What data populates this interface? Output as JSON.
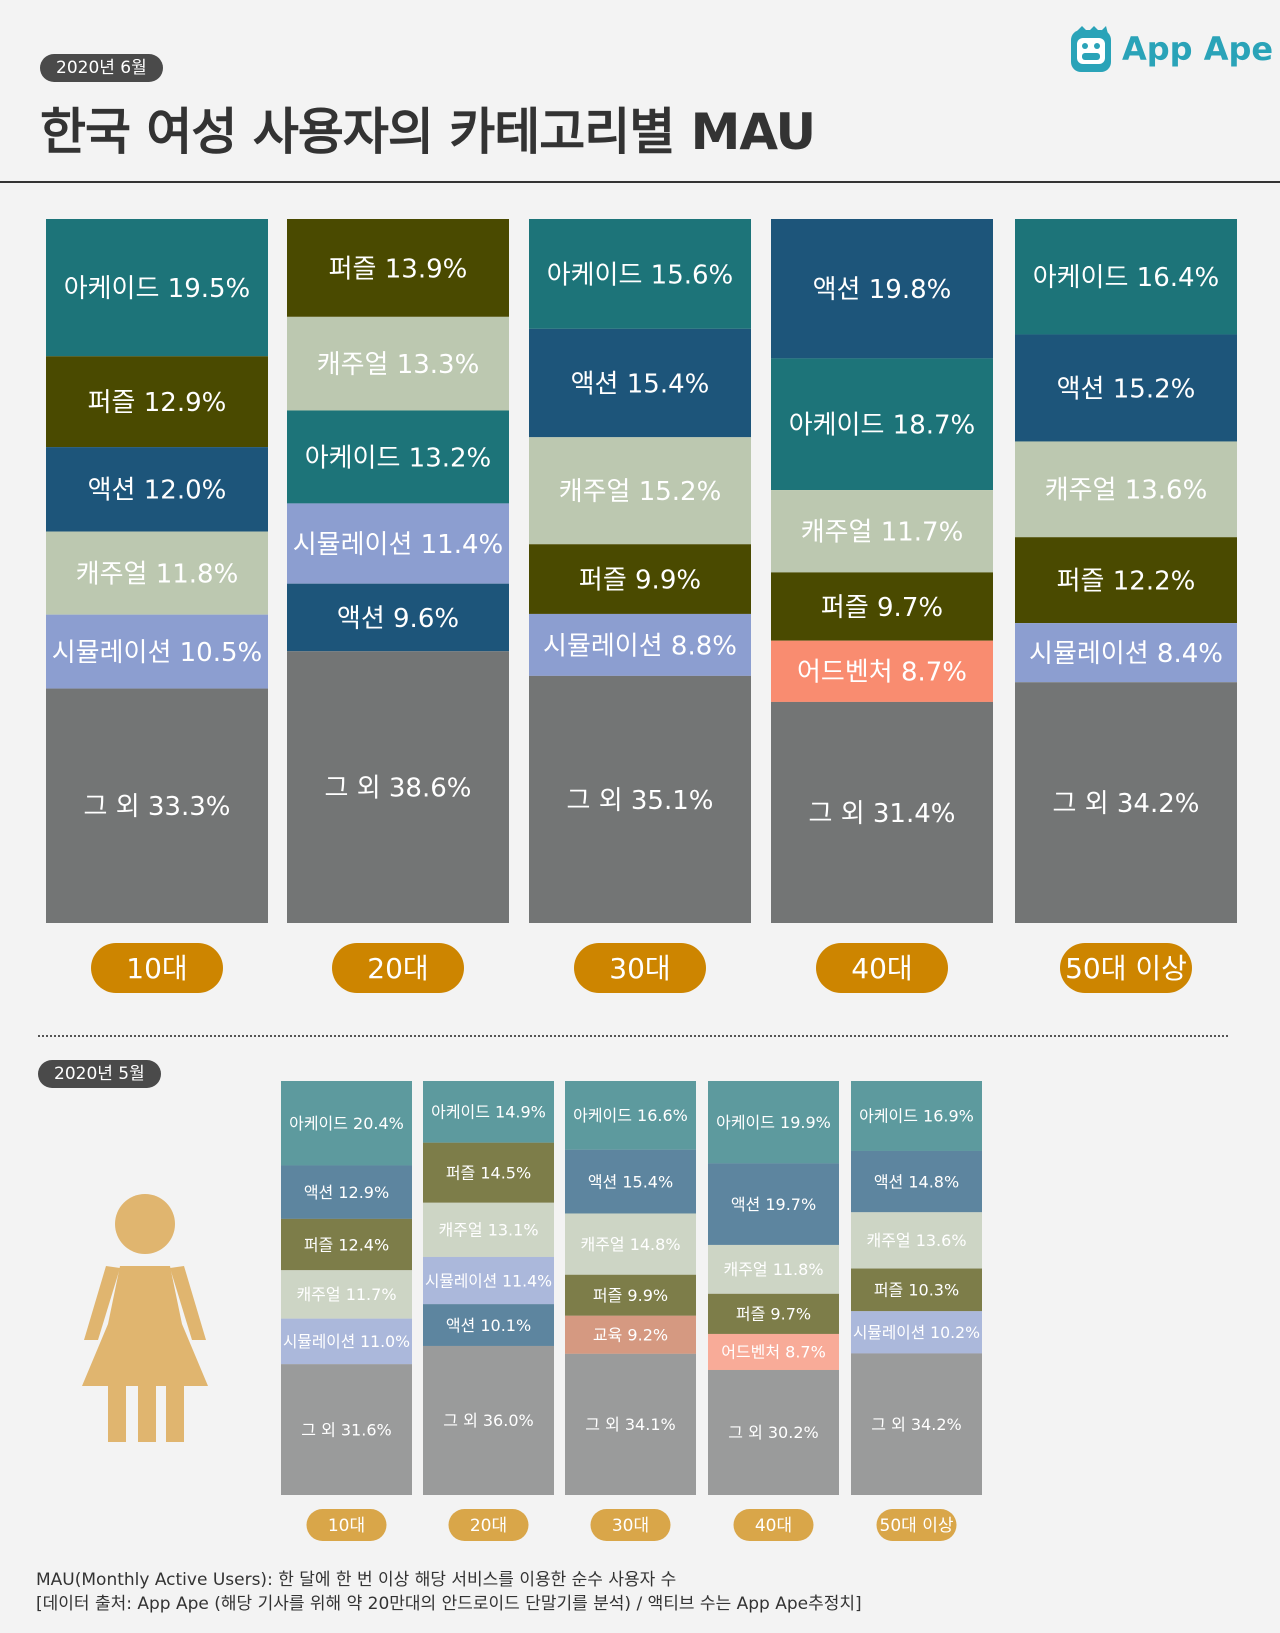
{
  "header": {
    "date": "2020년 6월",
    "title": "한국 여성 사용자의 카테고리별 MAU",
    "brand": "App Ape"
  },
  "colors": {
    "arcade": "#1d7479",
    "puzzle": "#4a4a00",
    "action": "#1d557a",
    "casual": "#bcc8b0",
    "simulation": "#8c9ed0",
    "adventure": "#f98c70",
    "education": "#c87250",
    "other": "#737575",
    "badge": "#cd8500",
    "brand": "#2aa3b8"
  },
  "chart_data": [
    {
      "type": "bar",
      "title": "2020년 6월",
      "stacked": true,
      "categories": [
        "10대",
        "20대",
        "30대",
        "40대",
        "50대 이상"
      ],
      "stacks": [
        [
          {
            "label": "아케이드 19.5%",
            "value": 19.5,
            "color": "arcade"
          },
          {
            "label": "퍼즐 12.9%",
            "value": 12.9,
            "color": "puzzle"
          },
          {
            "label": "액션 12.0%",
            "value": 12.0,
            "color": "action"
          },
          {
            "label": "캐주얼 11.8%",
            "value": 11.8,
            "color": "casual"
          },
          {
            "label": "시뮬레이션 10.5%",
            "value": 10.5,
            "color": "simulation"
          },
          {
            "label": "그 외 33.3%",
            "value": 33.3,
            "color": "other"
          }
        ],
        [
          {
            "label": "퍼즐 13.9%",
            "value": 13.9,
            "color": "puzzle"
          },
          {
            "label": "캐주얼 13.3%",
            "value": 13.3,
            "color": "casual"
          },
          {
            "label": "아케이드 13.2%",
            "value": 13.2,
            "color": "arcade"
          },
          {
            "label": "시뮬레이션 11.4%",
            "value": 11.4,
            "color": "simulation"
          },
          {
            "label": "액션 9.6%",
            "value": 9.6,
            "color": "action"
          },
          {
            "label": "그 외 38.6%",
            "value": 38.6,
            "color": "other"
          }
        ],
        [
          {
            "label": "아케이드 15.6%",
            "value": 15.6,
            "color": "arcade"
          },
          {
            "label": "액션 15.4%",
            "value": 15.4,
            "color": "action"
          },
          {
            "label": "캐주얼 15.2%",
            "value": 15.2,
            "color": "casual"
          },
          {
            "label": "퍼즐 9.9%",
            "value": 9.9,
            "color": "puzzle"
          },
          {
            "label": "시뮬레이션 8.8%",
            "value": 8.8,
            "color": "simulation"
          },
          {
            "label": "그 외 35.1%",
            "value": 35.1,
            "color": "other"
          }
        ],
        [
          {
            "label": "액션 19.8%",
            "value": 19.8,
            "color": "action"
          },
          {
            "label": "아케이드 18.7%",
            "value": 18.7,
            "color": "arcade"
          },
          {
            "label": "캐주얼 11.7%",
            "value": 11.7,
            "color": "casual"
          },
          {
            "label": "퍼즐 9.7%",
            "value": 9.7,
            "color": "puzzle"
          },
          {
            "label": "어드벤처 8.7%",
            "value": 8.7,
            "color": "adventure"
          },
          {
            "label": "그 외 31.4%",
            "value": 31.4,
            "color": "other"
          }
        ],
        [
          {
            "label": "아케이드 16.4%",
            "value": 16.4,
            "color": "arcade"
          },
          {
            "label": "액션 15.2%",
            "value": 15.2,
            "color": "action"
          },
          {
            "label": "캐주얼 13.6%",
            "value": 13.6,
            "color": "casual"
          },
          {
            "label": "퍼즐 12.2%",
            "value": 12.2,
            "color": "puzzle"
          },
          {
            "label": "시뮬레이션 8.4%",
            "value": 8.4,
            "color": "simulation"
          },
          {
            "label": "그 외 34.2%",
            "value": 34.2,
            "color": "other"
          }
        ]
      ]
    },
    {
      "type": "bar",
      "title": "2020년 5월",
      "stacked": true,
      "categories": [
        "10대",
        "20대",
        "30대",
        "40대",
        "50대 이상"
      ],
      "stacks": [
        [
          {
            "label": "아케이드 20.4%",
            "value": 20.4,
            "color": "arcade"
          },
          {
            "label": "액션 12.9%",
            "value": 12.9,
            "color": "action"
          },
          {
            "label": "퍼즐 12.4%",
            "value": 12.4,
            "color": "puzzle"
          },
          {
            "label": "캐주얼 11.7%",
            "value": 11.7,
            "color": "casual"
          },
          {
            "label": "시뮬레이션 11.0%",
            "value": 11.0,
            "color": "simulation"
          },
          {
            "label": "그 외 31.6%",
            "value": 31.6,
            "color": "other"
          }
        ],
        [
          {
            "label": "아케이드 14.9%",
            "value": 14.9,
            "color": "arcade"
          },
          {
            "label": "퍼즐 14.5%",
            "value": 14.5,
            "color": "puzzle"
          },
          {
            "label": "캐주얼 13.1%",
            "value": 13.1,
            "color": "casual"
          },
          {
            "label": "시뮬레이션 11.4%",
            "value": 11.4,
            "color": "simulation"
          },
          {
            "label": "액션 10.1%",
            "value": 10.1,
            "color": "action"
          },
          {
            "label": "그 외 36.0%",
            "value": 36.0,
            "color": "other"
          }
        ],
        [
          {
            "label": "아케이드 16.6%",
            "value": 16.6,
            "color": "arcade"
          },
          {
            "label": "액션 15.4%",
            "value": 15.4,
            "color": "action"
          },
          {
            "label": "캐주얼 14.8%",
            "value": 14.8,
            "color": "casual"
          },
          {
            "label": "퍼즐 9.9%",
            "value": 9.9,
            "color": "puzzle"
          },
          {
            "label": "교육 9.2%",
            "value": 9.2,
            "color": "education"
          },
          {
            "label": "그 외 34.1%",
            "value": 34.1,
            "color": "other"
          }
        ],
        [
          {
            "label": "아케이드 19.9%",
            "value": 19.9,
            "color": "arcade"
          },
          {
            "label": "액션 19.7%",
            "value": 19.7,
            "color": "action"
          },
          {
            "label": "캐주얼 11.8%",
            "value": 11.8,
            "color": "casual"
          },
          {
            "label": "퍼즐 9.7%",
            "value": 9.7,
            "color": "puzzle"
          },
          {
            "label": "어드벤처 8.7%",
            "value": 8.7,
            "color": "adventure"
          },
          {
            "label": "그 외 30.2%",
            "value": 30.2,
            "color": "other"
          }
        ],
        [
          {
            "label": "아케이드 16.9%",
            "value": 16.9,
            "color": "arcade"
          },
          {
            "label": "액션 14.8%",
            "value": 14.8,
            "color": "action"
          },
          {
            "label": "캐주얼 13.6%",
            "value": 13.6,
            "color": "casual"
          },
          {
            "label": "퍼즐 10.3%",
            "value": 10.3,
            "color": "puzzle"
          },
          {
            "label": "시뮬레이션 10.2%",
            "value": 10.2,
            "color": "simulation"
          },
          {
            "label": "그 외 34.2%",
            "value": 34.2,
            "color": "other"
          }
        ]
      ]
    }
  ],
  "footer": {
    "line1": "MAU(Monthly Active Users):  한 달에 한 번 이상 해당 서비스를 이용한 순수 사용자 수",
    "line2": "[데이터 출처: App Ape (해당 기사를 위해 약 20만대의 안드로이드 단말기를 분석) / 액티브 수는 App Ape추정치]"
  }
}
